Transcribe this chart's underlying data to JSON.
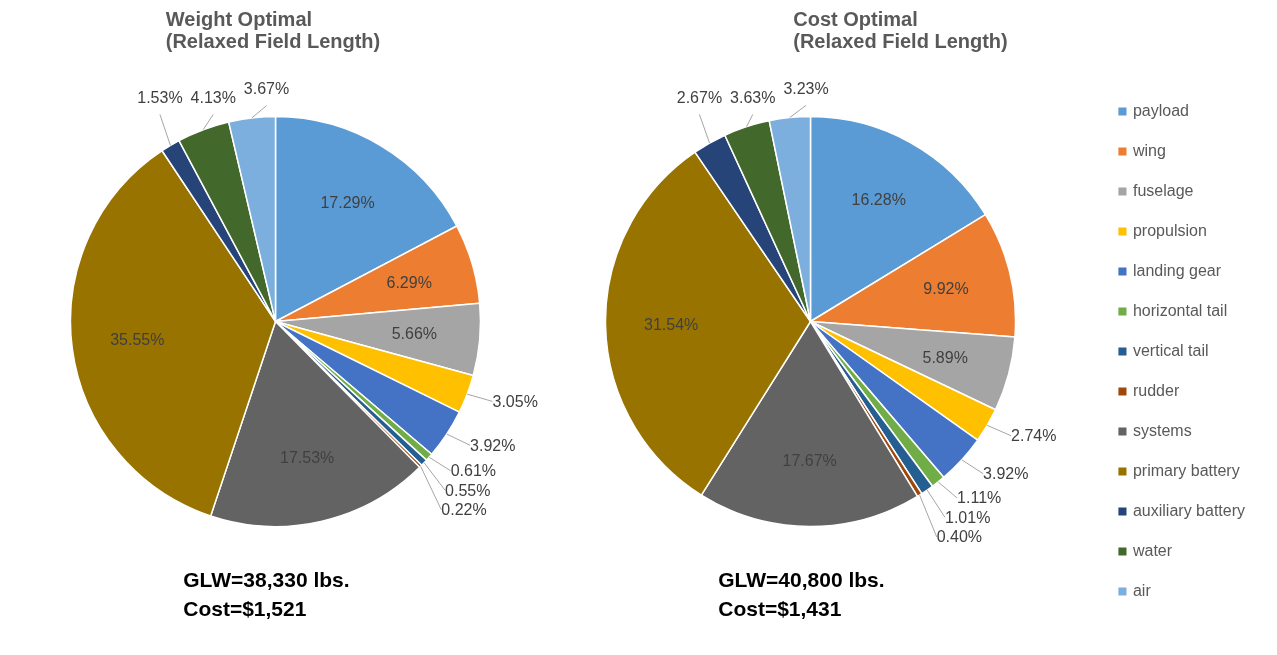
{
  "chart_data": [
    {
      "type": "pie",
      "title": "Weight Optimal\n(Relaxed Field Length)",
      "categories": [
        null,
        null,
        null,
        null,
        null,
        null,
        null,
        null,
        null,
        null,
        null,
        null,
        null
      ],
      "values": [
        17.29,
        6.29,
        5.66,
        3.05,
        3.92,
        0.61,
        0.55,
        0.22,
        17.53,
        35.55,
        1.53,
        4.13,
        3.67
      ],
      "colors": [
        "#5b9bd5",
        "#ed7d31",
        "#a5a5a5",
        "#ffc000",
        "#4472c4",
        "#70ad47",
        "#255e91",
        "#9e480e",
        "#636363",
        "#997300",
        "#264478",
        "#43682b",
        "#7cafdd"
      ],
      "value_labels": [
        "17.29%",
        "6.29%",
        "5.66%",
        "3.05%",
        "3.92%",
        "0.61%",
        "0.55%",
        "0.22%",
        "17.53%",
        "35.55%",
        "1.53%",
        "4.13%",
        "3.67%"
      ],
      "annotations": [
        "GLW=38,330 lbs.",
        "Cost=$1,521"
      ]
    },
    {
      "type": "pie",
      "title": "Cost Optimal\n(Relaxed Field Length)",
      "categories": [
        "payload",
        "wing",
        "fuselage",
        "propulsion",
        "landing gear",
        "horizontal tail",
        "vertical tail",
        "rudder",
        "systems",
        "primary battery",
        "auxiliary battery",
        "water",
        "air"
      ],
      "values": [
        16.28,
        9.92,
        5.89,
        2.74,
        3.92,
        1.11,
        1.01,
        0.4,
        17.67,
        31.54,
        2.67,
        3.63,
        3.23
      ],
      "colors": [
        "#5b9bd5",
        "#ed7d31",
        "#a5a5a5",
        "#ffc000",
        "#4472c4",
        "#70ad47",
        "#255e91",
        "#9e480e",
        "#636363",
        "#997300",
        "#264478",
        "#43682b",
        "#7cafdd"
      ],
      "value_labels": [
        "16.28%",
        "9.92%",
        "5.89%",
        "2.74%",
        "3.92%",
        "1.11%",
        "1.01%",
        "0.40%",
        "17.67%",
        "31.54%",
        "2.67%",
        "3.63%",
        "3.23%"
      ],
      "legend": "right",
      "annotations": [
        "GLW=40,800 lbs.",
        "Cost=$1,431"
      ]
    }
  ]
}
